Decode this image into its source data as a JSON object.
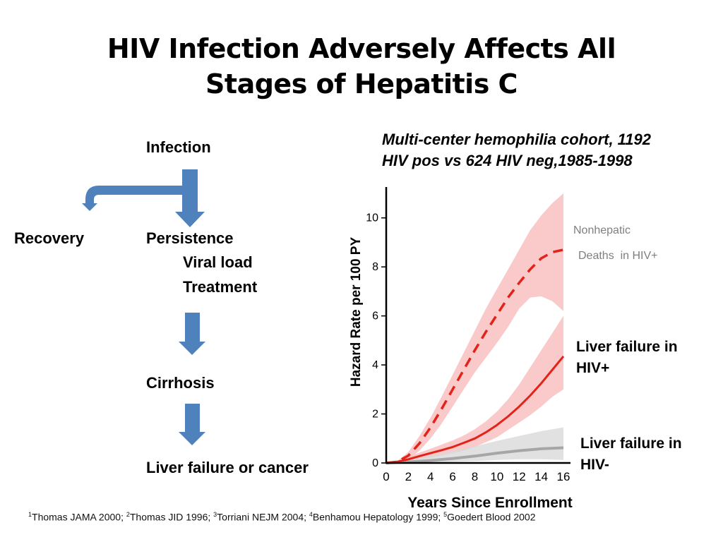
{
  "slide": {
    "title_line1": "HIV Infection Adversely Affects All",
    "title_line2": "Stages of Hepatitis C",
    "cohort_line1": "Multi-center hemophilia cohort, 1192",
    "cohort_line2": "HIV pos vs 624 HIV neg,1985-1998"
  },
  "flow": {
    "infection": "Infection",
    "recovery": "Recovery",
    "persistence": "Persistence",
    "viral_load": "Viral load",
    "treatment": "Treatment",
    "cirrhosis": "Cirrhosis",
    "liver_failure": "Liver failure or cancer",
    "arrow_color": "#4f81bd"
  },
  "chart_data": {
    "type": "line",
    "xlabel": "Years Since Enrollment",
    "ylabel": "Hazard Rate per 100 PY",
    "xlim": [
      0,
      16
    ],
    "ylim": [
      0,
      11
    ],
    "x_ticks": [
      0,
      2,
      4,
      6,
      8,
      10,
      12,
      14,
      16
    ],
    "y_ticks": [
      0,
      2,
      4,
      6,
      8,
      10
    ],
    "grid": false,
    "series": [
      {
        "name_line1": "Nonhepatic",
        "name_line2": "Deaths  in HIV+",
        "style": "dashed",
        "color": "#e2231a",
        "label_color": "#7f7f7f",
        "x": [
          0,
          1,
          2,
          3,
          4,
          5,
          6,
          7,
          8,
          9,
          10,
          11,
          12,
          13,
          14,
          15,
          16
        ],
        "values": [
          0,
          0.05,
          0.3,
          0.8,
          1.45,
          2.2,
          3.0,
          3.8,
          4.6,
          5.35,
          6.05,
          6.75,
          7.35,
          7.9,
          8.35,
          8.6,
          8.7
        ],
        "band_low": [
          0,
          0.03,
          0.15,
          0.5,
          1.0,
          1.6,
          2.3,
          3.0,
          3.7,
          4.3,
          4.9,
          5.55,
          6.3,
          6.75,
          6.8,
          6.6,
          6.2
        ],
        "band_high": [
          0,
          0.08,
          0.45,
          1.1,
          1.85,
          2.7,
          3.6,
          4.5,
          5.4,
          6.3,
          7.1,
          7.9,
          8.7,
          9.5,
          10.1,
          10.6,
          11.0
        ]
      },
      {
        "name_line1": "Liver failure in",
        "name_line2": "HIV+",
        "style": "solid",
        "color": "#e2231a",
        "label_color": "#000000",
        "x": [
          0,
          1,
          2,
          3,
          4,
          5,
          6,
          7,
          8,
          9,
          10,
          11,
          12,
          13,
          14,
          15,
          16
        ],
        "values": [
          0,
          0.05,
          0.15,
          0.28,
          0.4,
          0.52,
          0.65,
          0.82,
          1.0,
          1.25,
          1.55,
          1.9,
          2.3,
          2.75,
          3.25,
          3.8,
          4.35
        ],
        "band_low": [
          0,
          0.02,
          0.08,
          0.15,
          0.22,
          0.3,
          0.4,
          0.5,
          0.65,
          0.85,
          1.05,
          1.35,
          1.65,
          1.95,
          2.3,
          2.7,
          3.0
        ],
        "band_high": [
          0,
          0.08,
          0.25,
          0.42,
          0.58,
          0.75,
          0.92,
          1.12,
          1.38,
          1.7,
          2.1,
          2.6,
          3.2,
          3.9,
          4.6,
          5.3,
          6.0
        ]
      },
      {
        "name_line1": "Liver failure in",
        "name_line2": "HIV-",
        "style": "solid",
        "color": "#a6a6a6",
        "label_color": "#000000",
        "x": [
          0,
          2,
          4,
          6,
          8,
          10,
          12,
          14,
          16
        ],
        "values": [
          0,
          0.04,
          0.1,
          0.18,
          0.28,
          0.4,
          0.5,
          0.58,
          0.62
        ],
        "band_low": [
          0,
          0,
          0.02,
          0.05,
          0.08,
          0.12,
          0.15,
          0.15,
          0.12
        ],
        "band_high": [
          0,
          0.12,
          0.3,
          0.48,
          0.68,
          0.9,
          1.1,
          1.3,
          1.45
        ]
      }
    ]
  },
  "footnote": {
    "ref1_num": "1",
    "ref1_text": "Thomas JAMA 2000; ",
    "ref2_num": "2",
    "ref2_text": "Thomas JID 1996; ",
    "ref3_num": "3",
    "ref3_text": "Torriani NEJM 2004; ",
    "ref4_num": "4",
    "ref4_text": "Benhamou Hepatology 1999; ",
    "ref5_num": "5",
    "ref5_text": "Goedert Blood 2002"
  }
}
